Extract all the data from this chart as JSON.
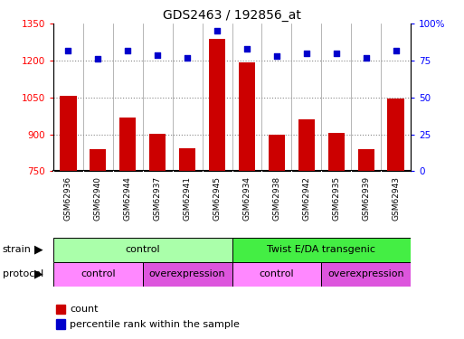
{
  "title": "GDS2463 / 192856_at",
  "samples": [
    "GSM62936",
    "GSM62940",
    "GSM62944",
    "GSM62937",
    "GSM62941",
    "GSM62945",
    "GSM62934",
    "GSM62938",
    "GSM62942",
    "GSM62935",
    "GSM62939",
    "GSM62943"
  ],
  "counts": [
    1058,
    840,
    968,
    903,
    843,
    1290,
    1193,
    897,
    962,
    907,
    838,
    1046
  ],
  "percentiles": [
    82,
    76,
    82,
    79,
    77,
    95,
    83,
    78,
    80,
    80,
    77,
    82
  ],
  "ylim_left": [
    750,
    1350
  ],
  "ylim_right": [
    0,
    100
  ],
  "yticks_left": [
    750,
    900,
    1050,
    1200,
    1350
  ],
  "yticks_right": [
    0,
    25,
    50,
    75,
    100
  ],
  "ytick_right_labels": [
    "0",
    "25",
    "50",
    "75",
    "100%"
  ],
  "bar_color": "#cc0000",
  "dot_color": "#0000cc",
  "grid_color": "#888888",
  "strain_groups": [
    {
      "label": "control",
      "start": 0,
      "end": 6,
      "color": "#aaffaa"
    },
    {
      "label": "Twist E/DA transgenic",
      "start": 6,
      "end": 12,
      "color": "#44ee44"
    }
  ],
  "protocol_groups": [
    {
      "label": "control",
      "start": 0,
      "end": 3,
      "color": "#ff88ff"
    },
    {
      "label": "overexpression",
      "start": 3,
      "end": 6,
      "color": "#dd55dd"
    },
    {
      "label": "control",
      "start": 6,
      "end": 9,
      "color": "#ff88ff"
    },
    {
      "label": "overexpression",
      "start": 9,
      "end": 12,
      "color": "#dd55dd"
    }
  ],
  "xtick_bg_color": "#cccccc",
  "border_color": "#000000"
}
